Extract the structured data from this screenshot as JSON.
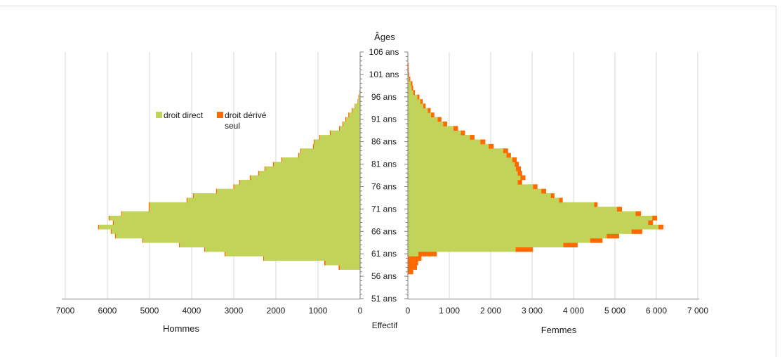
{
  "chart_data": {
    "type": "bar",
    "orientation": "population-pyramid",
    "y_axis_title": "Âges",
    "x_axis_title": "Effectif",
    "left_panel_label": "Hommes",
    "right_panel_label": "Femmes",
    "left_ticks": [
      "7000",
      "6000",
      "5000",
      "4000",
      "3000",
      "2000",
      "1000",
      "0"
    ],
    "right_ticks": [
      "0",
      "1 000",
      "2 000",
      "3 000",
      "4 000",
      "5 000",
      "6 000",
      "7 000"
    ],
    "age_ticks": [
      "106 ans",
      "101 ans",
      "96 ans",
      "91 ans",
      "86 ans",
      "81 ans",
      "76 ans",
      "71 ans",
      "66 ans",
      "61 ans",
      "56 ans",
      "51 ans"
    ],
    "xlim": [
      0,
      7000
    ],
    "age_range": [
      51,
      106
    ],
    "ages": [
      57,
      58,
      59,
      60,
      61,
      62,
      63,
      64,
      65,
      66,
      67,
      68,
      69,
      70,
      71,
      72,
      73,
      74,
      75,
      76,
      77,
      78,
      79,
      80,
      81,
      82,
      83,
      84,
      85,
      86,
      87,
      88,
      89,
      90,
      91,
      92,
      93,
      94,
      95,
      96,
      97,
      98,
      99,
      100,
      101,
      102,
      103
    ],
    "series": [
      {
        "name": "droit direct",
        "color": "#c2d35a",
        "men": [
          0,
          480,
          820,
          2280,
          3200,
          3680,
          4280,
          5150,
          5800,
          5900,
          6200,
          5850,
          5950,
          5650,
          5000,
          5000,
          4100,
          3950,
          3400,
          2990,
          2850,
          2600,
          2400,
          2250,
          2050,
          1850,
          1450,
          1400,
          1100,
          1080,
          950,
          700,
          480,
          400,
          330,
          260,
          180,
          120,
          50,
          30,
          20,
          0,
          0,
          0,
          0,
          0,
          0
        ],
        "women": [
          0,
          0,
          0,
          0,
          250,
          2600,
          3750,
          4400,
          4800,
          5400,
          6050,
          5800,
          5900,
          5500,
          5050,
          4500,
          3650,
          3450,
          3220,
          3020,
          2650,
          2720,
          2650,
          2610,
          2580,
          2520,
          2380,
          2300,
          1950,
          1750,
          1500,
          1280,
          1100,
          850,
          720,
          560,
          480,
          370,
          300,
          230,
          130,
          90,
          70,
          30,
          10,
          0,
          0
        ],
        "values_note_unit": "Effectif"
      },
      {
        "name": "droit dérivé seul",
        "color": "#ff6a00",
        "men": [
          0,
          30,
          30,
          20,
          20,
          20,
          20,
          20,
          20,
          20,
          20,
          20,
          20,
          20,
          20,
          20,
          20,
          20,
          20,
          20,
          20,
          20,
          20,
          20,
          20,
          20,
          20,
          20,
          20,
          20,
          20,
          20,
          20,
          20,
          20,
          20,
          20,
          10,
          10,
          10,
          0,
          0,
          0,
          0,
          0,
          0,
          0
        ],
        "women": [
          130,
          220,
          250,
          330,
          450,
          420,
          350,
          300,
          300,
          260,
          120,
          120,
          120,
          130,
          120,
          80,
          90,
          90,
          120,
          110,
          110,
          120,
          110,
          120,
          100,
          110,
          110,
          120,
          120,
          120,
          110,
          100,
          110,
          100,
          90,
          80,
          70,
          60,
          60,
          50,
          40,
          40,
          40,
          30,
          20,
          20,
          20
        ]
      }
    ],
    "legend": [
      "droit direct",
      "droit dérivé seul"
    ],
    "legend_placement": "top-left",
    "grid": true
  }
}
